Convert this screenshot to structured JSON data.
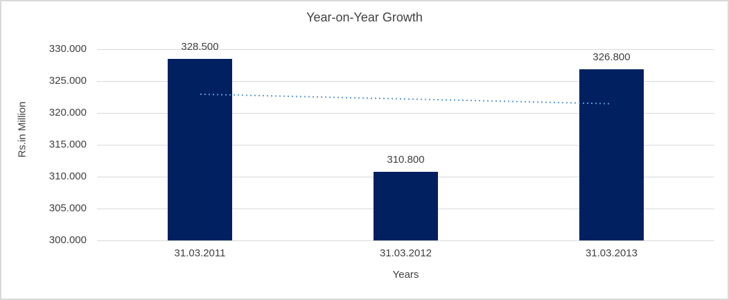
{
  "chart_data": {
    "type": "bar",
    "title": "Year-on-Year Growth",
    "xlabel": "Years",
    "ylabel": "Rs.in Million",
    "categories": [
      "31.03.2011",
      "31.03.2012",
      "31.03.2013"
    ],
    "values": [
      328.5,
      310.8,
      326.8
    ],
    "value_labels": [
      "328.500",
      "310.800",
      "326.800"
    ],
    "ylim": [
      300,
      330
    ],
    "yticks": [
      330,
      325,
      320,
      315,
      310,
      305,
      300
    ],
    "ytick_labels": [
      "330.000",
      "325.000",
      "320.000",
      "315.000",
      "310.000",
      "305.000",
      "300.000"
    ],
    "grid": true,
    "legend": false,
    "trendline": {
      "type": "linear",
      "style": "dotted",
      "start_value": 322.9,
      "end_value": 321.4,
      "color": "#5B9BD5"
    },
    "colors": {
      "bar": "#002060",
      "gridline": "#D9D9D9",
      "frame": "#D9D9D9",
      "text": "#404040",
      "trendline": "#5B9BD5",
      "background": "#FFFFFF"
    }
  }
}
